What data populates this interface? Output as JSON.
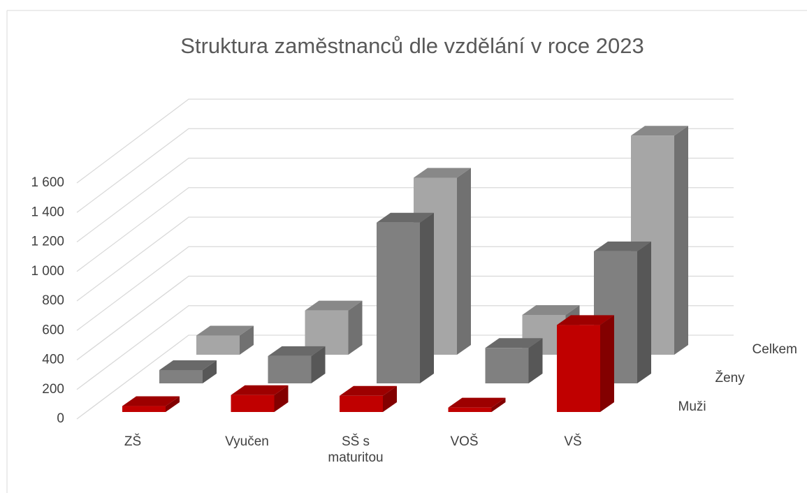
{
  "chart_data": {
    "type": "bar3d",
    "title": "Struktura zaměstnanců dle vzdělání v roce 2023",
    "categories": [
      "ZŠ",
      "Vyučen",
      "SŠ s maturitou",
      "VOŠ",
      "VŠ"
    ],
    "series": [
      {
        "name": "Muži",
        "color": "#c00000",
        "values": [
          40,
          115,
          110,
          30,
          590
        ]
      },
      {
        "name": "Ženy",
        "color": "#808080",
        "values": [
          90,
          185,
          1090,
          240,
          895
        ]
      },
      {
        "name": "Celkem",
        "color": "#a6a6a6",
        "values": [
          130,
          300,
          1200,
          270,
          1485
        ]
      }
    ],
    "ylim": [
      0,
      1600
    ],
    "yticks": [
      0,
      200,
      400,
      600,
      800,
      {
        "value": 1000,
        "label": "1 000"
      },
      {
        "value": 1200,
        "label": "1 200"
      },
      {
        "value": 1400,
        "label": "1 400"
      },
      {
        "value": 1600,
        "label": "1 600"
      }
    ],
    "grid": true
  }
}
